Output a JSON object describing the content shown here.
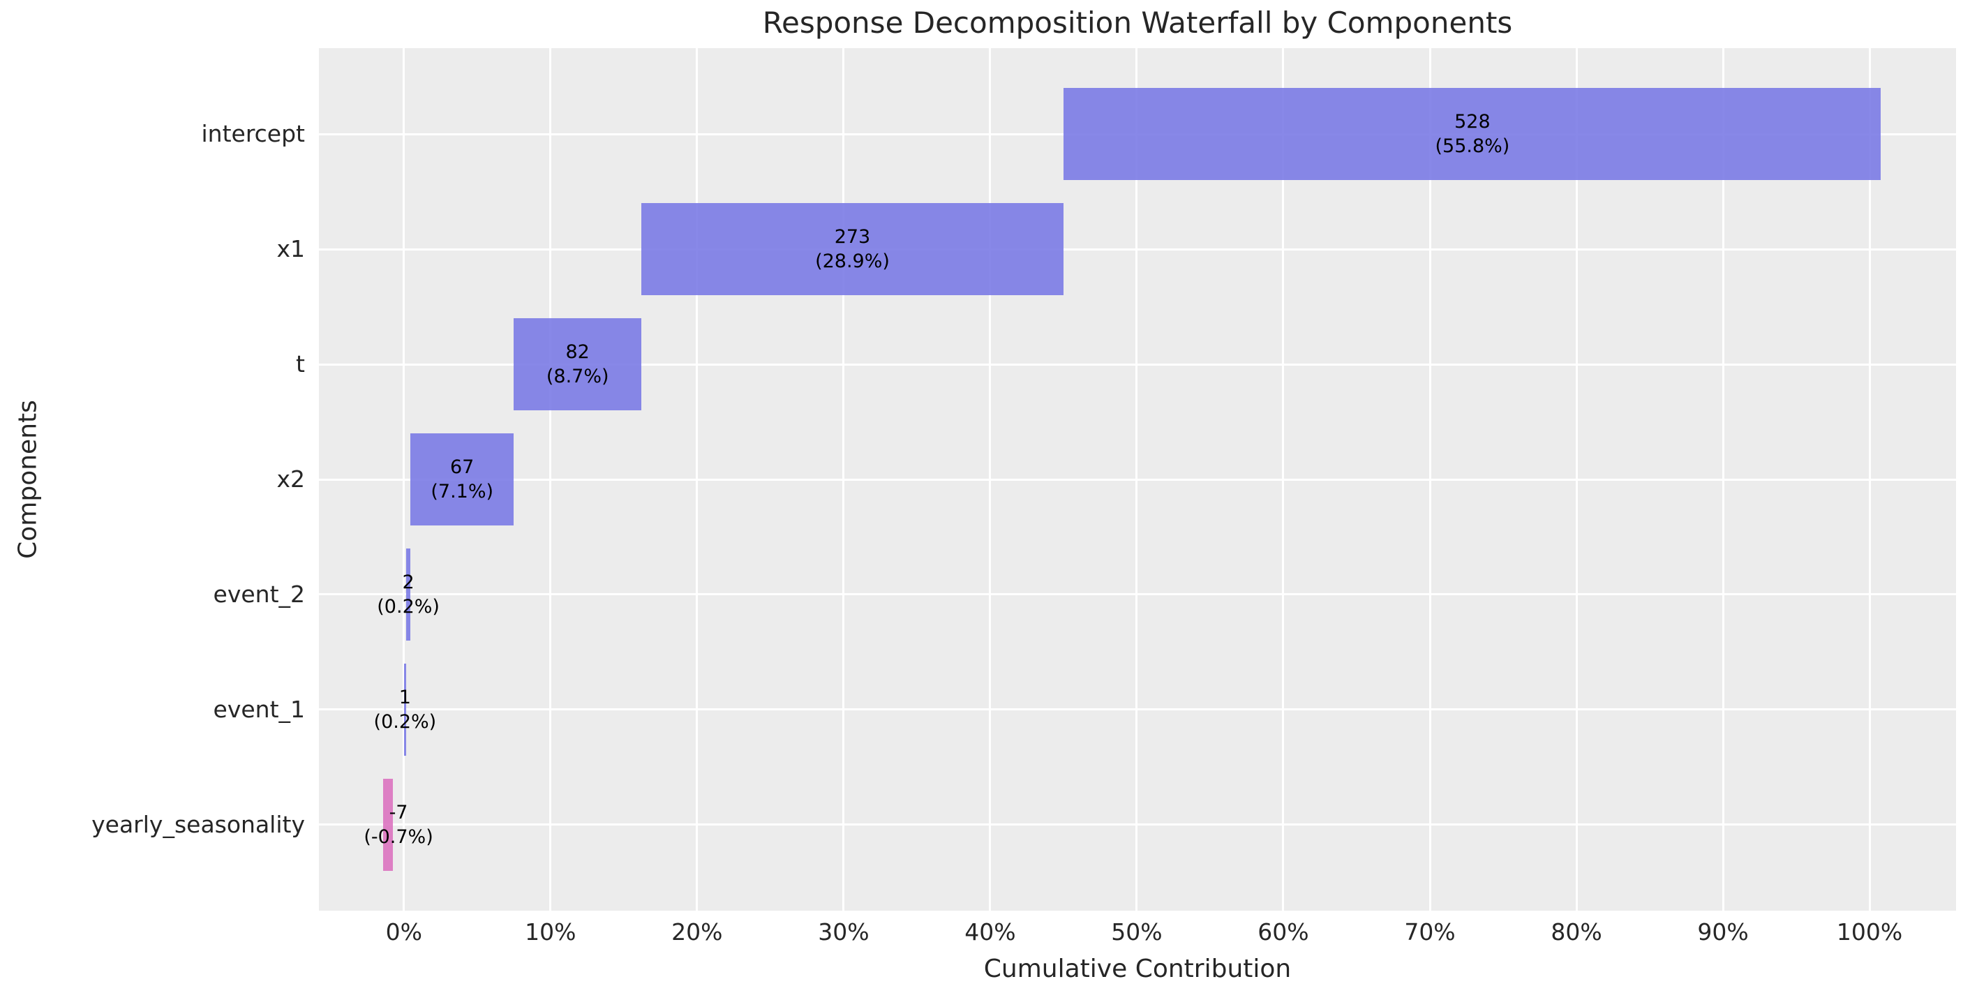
{
  "chart_data": {
    "type": "bar",
    "subtype": "waterfall",
    "orientation": "horizontal",
    "title": "Response Decomposition Waterfall by Components",
    "xlabel": "Cumulative Contribution",
    "ylabel": "Components",
    "grid": true,
    "legend": false,
    "xlim": [
      -5.8,
      105.9
    ],
    "x_ticks": [
      {
        "value": 0,
        "label": "0%"
      },
      {
        "value": 10,
        "label": "10%"
      },
      {
        "value": 20,
        "label": "20%"
      },
      {
        "value": 30,
        "label": "30%"
      },
      {
        "value": 40,
        "label": "40%"
      },
      {
        "value": 50,
        "label": "50%"
      },
      {
        "value": 60,
        "label": "60%"
      },
      {
        "value": 70,
        "label": "70%"
      },
      {
        "value": 80,
        "label": "80%"
      },
      {
        "value": 90,
        "label": "90%"
      },
      {
        "value": 100,
        "label": "100%"
      }
    ],
    "categories": [
      "intercept",
      "x1",
      "t",
      "x2",
      "event_2",
      "event_1",
      "yearly_seasonality"
    ],
    "values": [
      528,
      273,
      82,
      67,
      2,
      1,
      -7
    ],
    "components": [
      {
        "name": "intercept",
        "value_label": "528",
        "pct_label": "(55.8%)",
        "bar_from": 45.0,
        "bar_to": 100.75,
        "label_at": 72.9
      },
      {
        "name": "x1",
        "value_label": "273",
        "pct_label": "(28.9%)",
        "bar_from": 16.2,
        "bar_to": 45.0,
        "label_at": 30.6
      },
      {
        "name": "t",
        "value_label": "82",
        "pct_label": "(8.7%)",
        "bar_from": 7.5,
        "bar_to": 16.2,
        "label_at": 11.85
      },
      {
        "name": "x2",
        "value_label": "67",
        "pct_label": "(7.1%)",
        "bar_from": 0.45,
        "bar_to": 7.5,
        "label_at": 3.97
      },
      {
        "name": "event_2",
        "value_label": "2",
        "pct_label": "(0.2%)",
        "bar_from": 0.15,
        "bar_to": 0.45,
        "label_at": 0.3
      },
      {
        "name": "event_1",
        "value_label": "1",
        "pct_label": "(0.2%)",
        "bar_from": 0.0,
        "bar_to": 0.15,
        "label_at": 0.075
      },
      {
        "name": "yearly_seasonality",
        "value_label": "-7",
        "pct_label": "(-0.7%)",
        "bar_from": -1.44,
        "bar_to": -0.74,
        "label_at": -0.37
      }
    ],
    "bar_height_units": 0.8,
    "y_edge_padding_units": 0.746,
    "colors": {
      "positive_bar": "#7b7be5",
      "negative_bar": "#db73c0",
      "bar_alpha": 0.9,
      "plot_background": "#ececec",
      "gridline": "#ffffff",
      "axis_text": "#262626",
      "bar_label_text": "#000000"
    }
  }
}
